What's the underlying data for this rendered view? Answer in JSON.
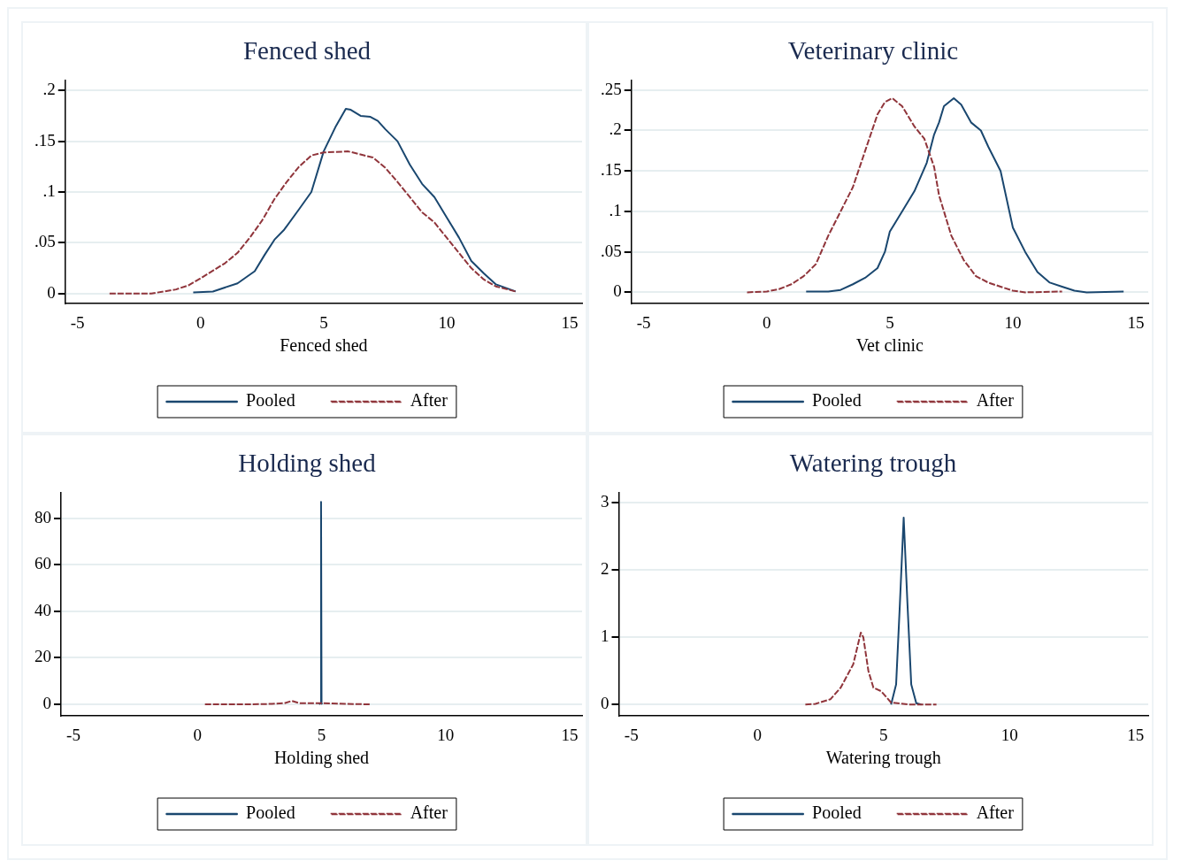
{
  "chart_data": [
    {
      "type": "line",
      "title": "Fenced shed",
      "xlabel": "Fenced shed",
      "xlim": [
        -5.5,
        15.5
      ],
      "xticks": [
        -5,
        0,
        5,
        10,
        15
      ],
      "ylim": [
        -0.01,
        0.21
      ],
      "yticks": [
        0,
        {
          "value": 0.05,
          "label": ".05"
        },
        {
          "value": 0.1,
          "label": ".1"
        },
        {
          "value": 0.15,
          "label": ".15"
        },
        {
          "value": 0.2,
          "label": ".2"
        }
      ],
      "grid": "y",
      "legend": "bottom",
      "series": [
        {
          "name": "Pooled",
          "color": "#1a476f",
          "line_style": "solid",
          "x": [
            -0.3,
            0.5,
            1.5,
            2.2,
            2.6,
            3,
            3.4,
            4,
            4.5,
            5,
            5.5,
            5.9,
            6.1,
            6.5,
            6.9,
            7.2,
            7.5,
            8,
            8.5,
            9,
            9.5,
            10,
            10.5,
            11,
            11.5,
            12,
            12.8
          ],
          "values": [
            0.001,
            0.002,
            0.01,
            0.022,
            0.038,
            0.053,
            0.063,
            0.083,
            0.1,
            0.14,
            0.165,
            0.182,
            0.181,
            0.175,
            0.174,
            0.17,
            0.162,
            0.15,
            0.127,
            0.108,
            0.095,
            0.075,
            0.055,
            0.032,
            0.02,
            0.009,
            0.002
          ]
        },
        {
          "name": "After",
          "color": "#90353b",
          "line_style": "dashed",
          "x": [
            -3.7,
            -2.5,
            -2,
            -1.5,
            -1,
            -0.5,
            0,
            1,
            1.5,
            2,
            2.5,
            3,
            3.5,
            4,
            4.5,
            5,
            6,
            7,
            7.5,
            8,
            8.5,
            9,
            9.5,
            10,
            10.5,
            11,
            11.5,
            12,
            12.8
          ],
          "values": [
            0,
            0,
            0,
            0.002,
            0.004,
            0.008,
            0.015,
            0.03,
            0.04,
            0.055,
            0.072,
            0.093,
            0.11,
            0.125,
            0.136,
            0.139,
            0.14,
            0.134,
            0.124,
            0.11,
            0.095,
            0.08,
            0.07,
            0.055,
            0.04,
            0.025,
            0.014,
            0.007,
            0.002
          ]
        }
      ]
    },
    {
      "type": "line",
      "title": "Veterinary clinic",
      "xlabel": "Vet clinic",
      "xlim": [
        -5.5,
        15.5
      ],
      "xticks": [
        -5,
        0,
        5,
        10,
        15
      ],
      "ylim": [
        -0.014,
        0.262
      ],
      "yticks": [
        0,
        {
          "value": 0.05,
          "label": ".05"
        },
        {
          "value": 0.1,
          "label": ".1"
        },
        {
          "value": 0.15,
          "label": ".15"
        },
        {
          "value": 0.2,
          "label": ".2"
        },
        {
          "value": 0.25,
          "label": ".25"
        }
      ],
      "grid": "y",
      "legend": "bottom",
      "series": [
        {
          "name": "Pooled",
          "color": "#1a476f",
          "line_style": "solid",
          "x": [
            1.6,
            2.5,
            3,
            3.5,
            4,
            4.5,
            4.8,
            5,
            5.5,
            6,
            6.5,
            6.8,
            7,
            7.2,
            7.6,
            7.9,
            8.3,
            8.7,
            9,
            9.5,
            10,
            10.5,
            11,
            11.5,
            12,
            12.5,
            13,
            14.5
          ],
          "values": [
            0.001,
            0.001,
            0.003,
            0.01,
            0.018,
            0.03,
            0.05,
            0.075,
            0.1,
            0.125,
            0.16,
            0.195,
            0.21,
            0.23,
            0.24,
            0.232,
            0.21,
            0.2,
            0.18,
            0.15,
            0.08,
            0.05,
            0.025,
            0.012,
            0.007,
            0.002,
            0,
            0.001
          ]
        },
        {
          "name": "After",
          "color": "#90353b",
          "line_style": "dashed",
          "x": [
            -0.8,
            0,
            0.5,
            1,
            1.5,
            2,
            2.5,
            3,
            3.5,
            4,
            4.5,
            4.8,
            5.1,
            5.5,
            6,
            6.4,
            6.8,
            7,
            7.5,
            8,
            8.5,
            9,
            9.5,
            10,
            10.5,
            12
          ],
          "values": [
            0,
            0.001,
            0.004,
            0.01,
            0.02,
            0.035,
            0.07,
            0.1,
            0.13,
            0.175,
            0.22,
            0.235,
            0.24,
            0.23,
            0.205,
            0.19,
            0.155,
            0.12,
            0.07,
            0.04,
            0.02,
            0.012,
            0.007,
            0.002,
            0,
            0.001
          ]
        }
      ]
    },
    {
      "type": "line",
      "title": "Holding shed",
      "xlabel": "Holding shed",
      "xlim": [
        -5.5,
        15.5
      ],
      "xticks": [
        -5,
        0,
        5,
        10,
        15
      ],
      "ylim": [
        -5,
        91
      ],
      "yticks": [
        0,
        20,
        40,
        60,
        80
      ],
      "grid": "y",
      "legend": "bottom",
      "series": [
        {
          "name": "Pooled",
          "color": "#1a476f",
          "line_style": "solid",
          "x": [
            4.9,
            4.96,
            4.98,
            5.0,
            5.02
          ],
          "values": [
            0,
            0.5,
            87,
            0.5,
            0
          ]
        },
        {
          "name": "After",
          "color": "#90353b",
          "line_style": "dashed",
          "x": [
            0.3,
            2,
            3,
            3.5,
            3.8,
            4.1,
            5,
            6,
            7
          ],
          "values": [
            0,
            0,
            0.2,
            0.5,
            1.5,
            0.5,
            0.5,
            0.2,
            0
          ]
        }
      ]
    },
    {
      "type": "line",
      "title": "Watering trough",
      "xlabel": "Watering trough",
      "xlim": [
        -5.5,
        15.5
      ],
      "xticks": [
        -5,
        0,
        5,
        10,
        15
      ],
      "ylim": [
        -0.17,
        3.15
      ],
      "yticks": [
        0,
        1,
        2,
        3
      ],
      "grid": "y",
      "legend": "bottom",
      "series": [
        {
          "name": "Pooled",
          "color": "#1a476f",
          "line_style": "solid",
          "x": [
            5.3,
            5.5,
            5.65,
            5.8,
            5.95,
            6.1,
            6.3,
            6.5
          ],
          "values": [
            0,
            0.3,
            1.5,
            2.78,
            1.5,
            0.3,
            0.02,
            0
          ]
        },
        {
          "name": "After",
          "color": "#90353b",
          "line_style": "dashed",
          "x": [
            1.9,
            2.3,
            2.9,
            3.3,
            3.8,
            4.1,
            4.2,
            4.4,
            4.6,
            4.9,
            5.3,
            6,
            7.1
          ],
          "values": [
            0,
            0.01,
            0.08,
            0.25,
            0.6,
            1.07,
            1,
            0.5,
            0.25,
            0.2,
            0.03,
            0,
            0
          ]
        }
      ]
    }
  ]
}
